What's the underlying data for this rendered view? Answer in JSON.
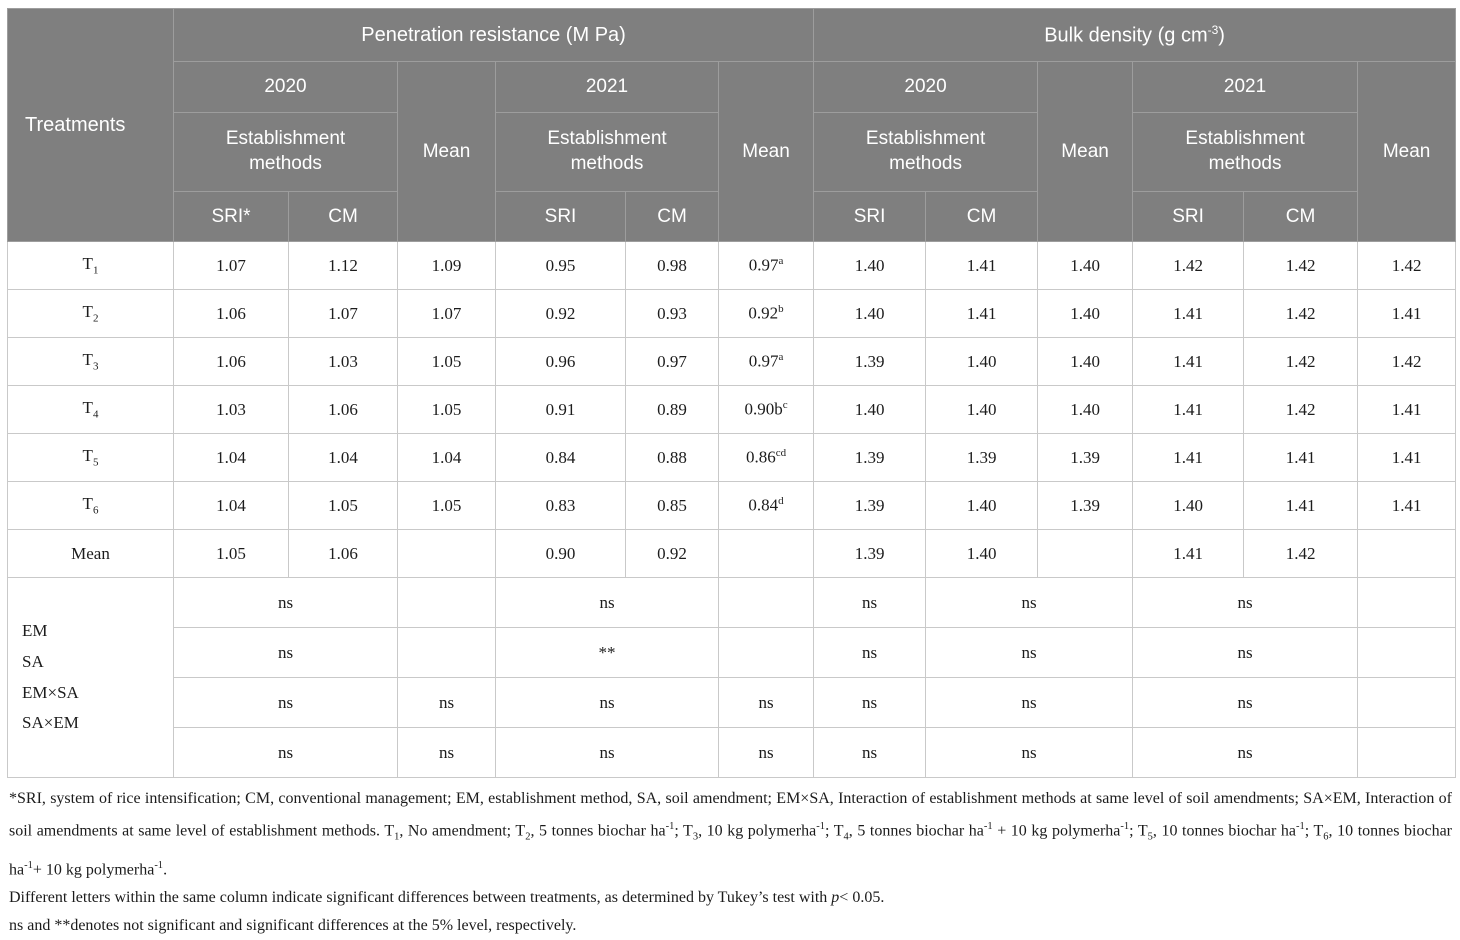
{
  "colors": {
    "header_bg": "#7f7f7f",
    "header_divider": "#9d9d9d",
    "header_text": "#ffffff",
    "body_border": "#c9c9c9",
    "body_text": "#1c1c1c"
  },
  "header": {
    "treatments_label": "Treatments",
    "group_penetration": "Penetration resistance (M Pa)",
    "group_bulk": "Bulk density (g cm^{-3})",
    "year_2020": "2020",
    "year_2021": "2021",
    "mean_label": "Mean",
    "establishment_label": "Establishment\nmethods",
    "sub_cols": [
      "SRI*",
      "CM",
      "SRI",
      "CM",
      "SRI",
      "CM",
      "SRI",
      "CM"
    ]
  },
  "rows": [
    {
      "label": "T_{1}",
      "values": [
        "1.07",
        "1.12",
        "1.09",
        "0.95",
        "0.98",
        "0.97^{a}",
        "1.40",
        "1.41",
        "1.40",
        "1.42",
        "1.42",
        "1.42"
      ]
    },
    {
      "label": "T_{2}",
      "values": [
        "1.06",
        "1.07",
        "1.07",
        "0.92",
        "0.93",
        "0.92^{b}",
        "1.40",
        "1.41",
        "1.40",
        "1.41",
        "1.42",
        "1.41"
      ]
    },
    {
      "label": "T_{3}",
      "values": [
        "1.06",
        "1.03",
        "1.05",
        "0.96",
        "0.97",
        "0.97^{a}",
        "1.39",
        "1.40",
        "1.40",
        "1.41",
        "1.42",
        "1.42"
      ]
    },
    {
      "label": "T_{4}",
      "values": [
        "1.03",
        "1.06",
        "1.05",
        "0.91",
        "0.89",
        "0.90b^{c}",
        "1.40",
        "1.40",
        "1.40",
        "1.41",
        "1.42",
        "1.41"
      ]
    },
    {
      "label": "T_{5}",
      "values": [
        "1.04",
        "1.04",
        "1.04",
        "0.84",
        "0.88",
        "0.86^{cd}",
        "1.39",
        "1.39",
        "1.39",
        "1.41",
        "1.41",
        "1.41"
      ]
    },
    {
      "label": "T_{6}",
      "values": [
        "1.04",
        "1.05",
        "1.05",
        "0.83",
        "0.85",
        "0.84^{d}",
        "1.39",
        "1.40",
        "1.39",
        "1.40",
        "1.41",
        "1.41"
      ]
    }
  ],
  "mean_row": {
    "label": "Mean",
    "values": [
      "1.05",
      "1.06",
      "",
      "0.90",
      "0.92",
      "",
      "1.39",
      "1.40",
      "",
      "1.41",
      "1.42",
      ""
    ]
  },
  "stats": {
    "label": "EM\nSA\nEM×SA\nSA×EM",
    "rows": [
      {
        "pr2020": "ns",
        "pr_mean1": "",
        "pr2021": "ns",
        "pr_mean2": "",
        "bd_sri": "ns",
        "bd_cm_mean": "ns",
        "bd2021": "ns",
        "bd_mean2": ""
      },
      {
        "pr2020": "ns",
        "pr_mean1": "",
        "pr2021": "**",
        "pr_mean2": "",
        "bd_sri": "ns",
        "bd_cm_mean": "ns",
        "bd2021": "ns",
        "bd_mean2": ""
      },
      {
        "pr2020": "ns",
        "pr_mean1": "ns",
        "pr2021": "ns",
        "pr_mean2": "ns",
        "bd_sri": "ns",
        "bd_cm_mean": "ns",
        "bd2021": "ns",
        "bd_mean2": ""
      },
      {
        "pr2020": "ns",
        "pr_mean1": "ns",
        "pr2021": "ns",
        "pr_mean2": "ns",
        "bd_sri": "ns",
        "bd_cm_mean": "ns",
        "bd2021": "ns",
        "bd_mean2": ""
      }
    ]
  },
  "footnotes": [
    "*SRI, system of rice intensification; CM, conventional management; EM, establishment method, SA, soil amendment; EM×SA, Interaction of establishment methods at same level of soil amendments; SA×EM, Interaction of soil amendments at same level of establishment methods. T_{1}, No amendment; T_{2}, 5 tonnes biochar ha^{-1}; T_{3}, 10 kg polymerha^{-1}; T_{4}, 5 tonnes biochar ha^{-1} + 10 kg polymerha^{-1}; T_{5}, 10 tonnes biochar ha^{-1}; T_{6}, 10 tonnes biochar ha^{-1}+ 10 kg polymerha^{-1}.",
    "Different letters within the same column indicate significant differences between treatments, as determined by Tukey’s test with ~{p}< 0.05.",
    "ns and **denotes not significant and significant differences at the 5% level, respectively."
  ]
}
